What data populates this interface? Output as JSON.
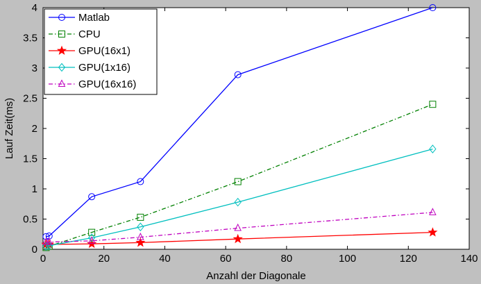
{
  "chart_data": {
    "type": "line",
    "title": "",
    "xlabel": "Anzahl der Diagonale",
    "ylabel": "Lauf Zeit(ms)",
    "xlim": [
      0,
      140
    ],
    "ylim": [
      0,
      4
    ],
    "x_ticks": [
      0,
      20,
      40,
      60,
      80,
      100,
      120,
      140
    ],
    "y_ticks": [
      0,
      0.5,
      1,
      1.5,
      2,
      2.5,
      3,
      3.5,
      4
    ],
    "grid": false,
    "legend_position": "top-left",
    "series": [
      {
        "name": "Matlab",
        "color": "#0000ff",
        "marker": "circle",
        "line": "solid",
        "x": [
          1,
          2,
          16,
          32,
          64,
          128
        ],
        "y": [
          0.21,
          0.22,
          0.87,
          1.12,
          2.89,
          4.0
        ]
      },
      {
        "name": "CPU",
        "color": "#008000",
        "marker": "square",
        "line": "dashdot",
        "x": [
          1,
          2,
          16,
          32,
          64,
          128
        ],
        "y": [
          0.03,
          0.05,
          0.28,
          0.53,
          1.12,
          2.4
        ]
      },
      {
        "name": "GPU(16x1)",
        "color": "#ff0000",
        "marker": "star",
        "line": "solid",
        "x": [
          1,
          2,
          16,
          32,
          64,
          128
        ],
        "y": [
          0.08,
          0.08,
          0.09,
          0.11,
          0.17,
          0.28
        ]
      },
      {
        "name": "GPU(1x16)",
        "color": "#00bfbf",
        "marker": "diamond",
        "line": "solid",
        "x": [
          1,
          2,
          16,
          32,
          64,
          128
        ],
        "y": [
          0.05,
          0.06,
          0.19,
          0.37,
          0.78,
          1.66
        ]
      },
      {
        "name": "GPU(16x16)",
        "color": "#bf00bf",
        "marker": "triangle-up",
        "line": "dashdot",
        "x": [
          1,
          2,
          16,
          32,
          64,
          128
        ],
        "y": [
          0.12,
          0.12,
          0.14,
          0.2,
          0.35,
          0.61
        ]
      }
    ]
  }
}
